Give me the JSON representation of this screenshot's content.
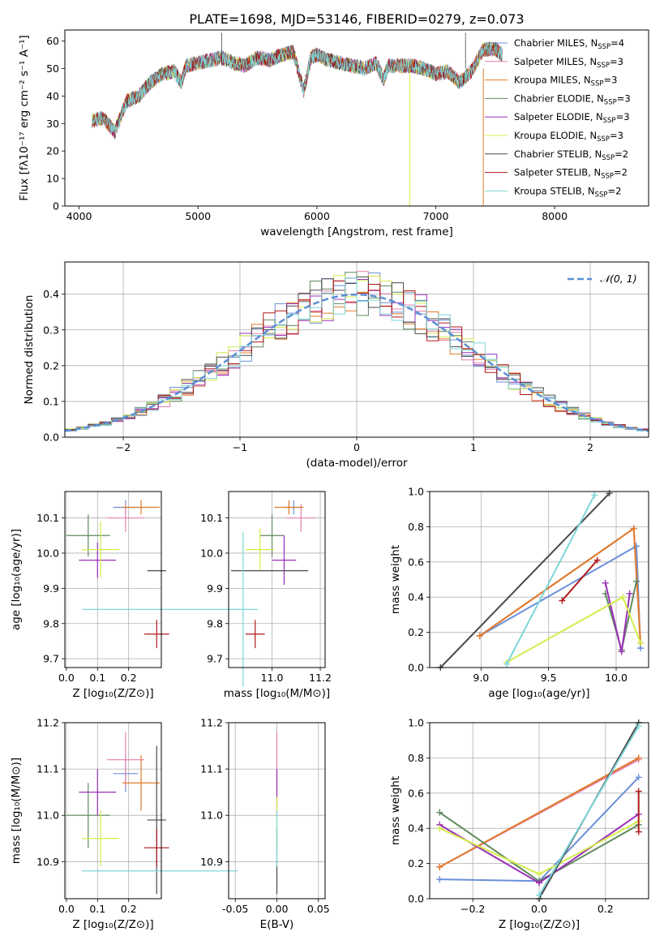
{
  "title": "PLATE=1698, MJD=53146, FIBERID=0279, z=0.073",
  "colors": {
    "chabrier_miles": "#6a8fd8",
    "salpeter_miles": "#e57fae",
    "kroupa_miles": "#e07b2a",
    "chabrier_elodie": "#5f8a5f",
    "salpeter_elodie": "#9b30b8",
    "kroupa_elodie": "#d4ec4a",
    "chabrier_stelib": "#4a4a4a",
    "salpeter_stelib": "#b01818",
    "kroupa_stelib": "#7fd6d8",
    "gaussian": "#5b8fd6"
  },
  "legend_spectrum": [
    {
      "key": "chabrier_miles",
      "label": "Chabrier MILES, N",
      "sub": "SSP",
      "eq": "=4"
    },
    {
      "key": "salpeter_miles",
      "label": "Salpeter MILES, N",
      "sub": "SSP",
      "eq": "=3"
    },
    {
      "key": "kroupa_miles",
      "label": "Kroupa MILES, N",
      "sub": "SSP",
      "eq": "=3"
    },
    {
      "key": "chabrier_elodie",
      "label": "Chabrier ELODIE, N",
      "sub": "SSP",
      "eq": "=3"
    },
    {
      "key": "salpeter_elodie",
      "label": "Salpeter ELODIE, N",
      "sub": "SSP",
      "eq": "=3"
    },
    {
      "key": "kroupa_elodie",
      "label": "Kroupa ELODIE, N",
      "sub": "SSP",
      "eq": "=3"
    },
    {
      "key": "chabrier_stelib",
      "label": "Chabrier STELIB, N",
      "sub": "SSP",
      "eq": "=2"
    },
    {
      "key": "salpeter_stelib",
      "label": "Salpeter STELIB, N",
      "sub": "SSP",
      "eq": "=2"
    },
    {
      "key": "kroupa_stelib",
      "label": "Kroupa STELIB, N",
      "sub": "SSP",
      "eq": "=2"
    }
  ],
  "chart_data": [
    {
      "id": "spectrum",
      "type": "line",
      "xlabel": "wavelength [Angstrom, rest frame]",
      "ylabel": "Flux [fλ10⁻¹⁷ erg cm⁻² s⁻¹ A⁻¹]",
      "xlim": [
        3880,
        8790
      ],
      "ylim": [
        0,
        64
      ],
      "xticks": [
        4000,
        5000,
        6000,
        7000,
        8000
      ],
      "yticks": [
        0,
        10,
        20,
        30,
        40,
        50,
        60
      ],
      "x": [
        4110,
        4200,
        4300,
        4400,
        4500,
        4600,
        4700,
        4800,
        4860,
        4900,
        5000,
        5100,
        5200,
        5300,
        5400,
        5500,
        5600,
        5700,
        5800,
        5890,
        5950,
        6000,
        6100,
        6200,
        6300,
        6400,
        6500,
        6560,
        6600,
        6700,
        6800,
        6900,
        7000,
        7100,
        7200,
        7300,
        7400,
        7500,
        7560
      ],
      "y": [
        31,
        32,
        27,
        38,
        40,
        45,
        48,
        49,
        45,
        51,
        52,
        53,
        54,
        52,
        51,
        54,
        53,
        55,
        56,
        42,
        54,
        55,
        53,
        52,
        51,
        50,
        52,
        46,
        51,
        51,
        51,
        50,
        48,
        49,
        45,
        49,
        57,
        57,
        55
      ]
    },
    {
      "id": "residuals",
      "type": "histogram",
      "xlabel": "(data-model)/error",
      "ylabel": "Normed distribution",
      "xlim": [
        -2.5,
        2.5
      ],
      "ylim": [
        0,
        0.49
      ],
      "xticks": [
        -2,
        -1,
        0,
        1,
        2
      ],
      "yticks": [
        0.0,
        0.1,
        0.2,
        0.3,
        0.4
      ],
      "legend": "𝒩(0, 1)",
      "bin_width": 0.1
    },
    {
      "id": "age_vs_Z",
      "type": "scatter",
      "xlabel": "Z [log₁₀(Z/Z⊙)]",
      "ylabel": "age [log₁₀(age/yr)]",
      "xlim": [
        -0.005,
        0.305
      ],
      "ylim": [
        9.675,
        10.175
      ],
      "xticks": [
        0.0,
        0.1,
        0.2
      ],
      "yticks": [
        9.7,
        9.8,
        9.9,
        10.0,
        10.1
      ],
      "points": [
        {
          "key": "chabrier_miles",
          "x": 0.19,
          "y": 10.13,
          "xerr": 0.04,
          "yerr": 0.02
        },
        {
          "key": "salpeter_miles",
          "x": 0.19,
          "y": 10.1,
          "xerr": 0.06,
          "yerr": 0.04
        },
        {
          "key": "kroupa_miles",
          "x": 0.24,
          "y": 10.13,
          "xerr": 0.06,
          "yerr": 0.02
        },
        {
          "key": "chabrier_elodie",
          "x": 0.07,
          "y": 10.05,
          "xerr": 0.07,
          "yerr": 0.06
        },
        {
          "key": "salpeter_elodie",
          "x": 0.1,
          "y": 9.98,
          "xerr": 0.06,
          "yerr": 0.05
        },
        {
          "key": "kroupa_elodie",
          "x": 0.11,
          "y": 10.01,
          "xerr": 0.06,
          "yerr": 0.08
        },
        {
          "key": "chabrier_stelib",
          "x": 0.29,
          "y": 9.95,
          "xerr": 0.03,
          "yerr": 0.0
        },
        {
          "key": "salpeter_stelib",
          "x": 0.29,
          "y": 9.77,
          "xerr": 0.04,
          "yerr": 0.04
        },
        {
          "key": "kroupa_stelib",
          "x": 0.3,
          "y": 9.84,
          "xerr": 0.25,
          "yerr": 0.0
        }
      ]
    },
    {
      "id": "age_vs_mass",
      "type": "scatter",
      "xlabel": "mass [log₁₀(M/M⊙)]",
      "ylabel": "",
      "xlim": [
        10.82,
        11.22
      ],
      "ylim": [
        9.675,
        10.175
      ],
      "xticks": [
        11.0,
        11.2
      ],
      "yticks": [
        9.7,
        9.8,
        9.9,
        10.0,
        10.1
      ],
      "points": [
        {
          "key": "chabrier_miles",
          "x": 11.09,
          "y": 10.13,
          "xerr": 0.04,
          "yerr": 0.02
        },
        {
          "key": "salpeter_miles",
          "x": 11.12,
          "y": 10.1,
          "xerr": 0.06,
          "yerr": 0.04
        },
        {
          "key": "kroupa_miles",
          "x": 11.07,
          "y": 10.13,
          "xerr": 0.06,
          "yerr": 0.02
        },
        {
          "key": "chabrier_elodie",
          "x": 11.0,
          "y": 10.05,
          "xerr": 0.05,
          "yerr": 0.06
        },
        {
          "key": "salpeter_elodie",
          "x": 11.05,
          "y": 9.98,
          "xerr": 0.05,
          "yerr": 0.07
        },
        {
          "key": "kroupa_elodie",
          "x": 10.95,
          "y": 10.01,
          "xerr": 0.06,
          "yerr": 0.06
        },
        {
          "key": "chabrier_stelib",
          "x": 10.99,
          "y": 9.95,
          "xerr": 0.16,
          "yerr": 0.0
        },
        {
          "key": "salpeter_stelib",
          "x": 10.93,
          "y": 9.77,
          "xerr": 0.04,
          "yerr": 0.04
        },
        {
          "key": "kroupa_stelib",
          "x": 10.88,
          "y": 9.84,
          "xerr": 0.06,
          "yerr": 0.22
        }
      ]
    },
    {
      "id": "weight_vs_age",
      "type": "line",
      "xlabel": "age [log₁₀(age/yr)]",
      "ylabel": "mass weight",
      "xlim": [
        8.62,
        10.24
      ],
      "ylim": [
        0.0,
        1.0
      ],
      "xticks": [
        9.0,
        9.5,
        10.0
      ],
      "yticks": [
        0.0,
        0.2,
        0.4,
        0.6,
        0.8,
        1.0
      ],
      "series": [
        {
          "key": "chabrier_miles",
          "x": [
            8.99,
            10.15,
            10.18
          ],
          "y": [
            0.18,
            0.69,
            0.11
          ]
        },
        {
          "key": "salpeter_miles",
          "x": [
            8.99,
            10.13,
            10.18
          ],
          "y": [
            0.18,
            0.79,
            0.14
          ]
        },
        {
          "key": "kroupa_miles",
          "x": [
            8.99,
            10.13,
            10.18
          ],
          "y": [
            0.18,
            0.79,
            0.14
          ]
        },
        {
          "key": "chabrier_elodie",
          "x": [
            9.92,
            10.04,
            10.15
          ],
          "y": [
            0.42,
            0.1,
            0.49
          ]
        },
        {
          "key": "salpeter_elodie",
          "x": [
            9.92,
            10.04,
            10.1
          ],
          "y": [
            0.48,
            0.09,
            0.42
          ]
        },
        {
          "key": "kroupa_elodie",
          "x": [
            9.19,
            10.05,
            10.18
          ],
          "y": [
            0.03,
            0.4,
            0.14
          ]
        },
        {
          "key": "chabrier_stelib",
          "x": [
            8.7,
            9.95
          ],
          "y": [
            0.0,
            0.99
          ]
        },
        {
          "key": "salpeter_stelib",
          "x": [
            9.6,
            9.86
          ],
          "y": [
            0.38,
            0.61
          ]
        },
        {
          "key": "kroupa_stelib",
          "x": [
            9.19,
            9.84
          ],
          "y": [
            0.02,
            0.98
          ]
        }
      ]
    },
    {
      "id": "mass_vs_Z",
      "type": "scatter",
      "xlabel": "Z [log₁₀(Z/Z⊙)]",
      "ylabel": "mass [log₁₀(M/M⊙)]",
      "xlim": [
        -0.005,
        0.305
      ],
      "ylim": [
        10.82,
        11.2
      ],
      "xticks": [
        0.0,
        0.1,
        0.2
      ],
      "yticks": [
        10.9,
        11.0,
        11.1,
        11.2
      ],
      "points": [
        {
          "key": "chabrier_miles",
          "x": 0.19,
          "y": 11.09,
          "xerr": 0.04,
          "yerr": 0.04
        },
        {
          "key": "salpeter_miles",
          "x": 0.19,
          "y": 11.12,
          "xerr": 0.06,
          "yerr": 0.06
        },
        {
          "key": "kroupa_miles",
          "x": 0.24,
          "y": 11.07,
          "xerr": 0.06,
          "yerr": 0.06
        },
        {
          "key": "chabrier_elodie",
          "x": 0.07,
          "y": 11.0,
          "xerr": 0.07,
          "yerr": 0.07
        },
        {
          "key": "salpeter_elodie",
          "x": 0.1,
          "y": 11.05,
          "xerr": 0.06,
          "yerr": 0.05
        },
        {
          "key": "kroupa_elodie",
          "x": 0.11,
          "y": 10.95,
          "xerr": 0.06,
          "yerr": 0.06
        },
        {
          "key": "chabrier_stelib",
          "x": 0.29,
          "y": 10.99,
          "xerr": 0.03,
          "yerr": 0.16
        },
        {
          "key": "salpeter_stelib",
          "x": 0.29,
          "y": 10.93,
          "xerr": 0.04,
          "yerr": 0.04
        },
        {
          "key": "kroupa_stelib",
          "x": 0.3,
          "y": 10.88,
          "xerr": 0.25,
          "yerr": 0.0
        }
      ]
    },
    {
      "id": "mass_vs_ebv",
      "type": "scatter",
      "xlabel": "E(B-V)",
      "ylabel": "",
      "xlim": [
        -0.058,
        0.058
      ],
      "ylim": [
        10.82,
        11.2
      ],
      "xticks": [
        -0.05,
        0.0,
        0.05
      ],
      "yticks": [
        10.9,
        11.0,
        11.1,
        11.2
      ],
      "points": [
        {
          "key": "salpeter_miles",
          "x": 0.0,
          "y": 11.1,
          "xerr": 0.0,
          "yerr": 0.08
        },
        {
          "key": "salpeter_elodie",
          "x": 0.0,
          "y": 11.05,
          "xerr": 0.0,
          "yerr": 0.05
        },
        {
          "key": "kroupa_elodie",
          "x": 0.0,
          "y": 10.98,
          "xerr": 0.0,
          "yerr": 0.06
        },
        {
          "key": "chabrier_stelib",
          "x": 0.0,
          "y": 10.9,
          "xerr": 0.0,
          "yerr": 0.07
        },
        {
          "key": "kroupa_stelib",
          "x": 0.0,
          "y": 10.95,
          "xerr": 0.0,
          "yerr": 0.06
        }
      ]
    },
    {
      "id": "weight_vs_Z",
      "type": "line",
      "xlabel": "Z [log₁₀(Z/Z⊙)]",
      "ylabel": "mass weight",
      "xlim": [
        -0.33,
        0.33
      ],
      "ylim": [
        0.0,
        1.0
      ],
      "xticks": [
        -0.2,
        0.0,
        0.2
      ],
      "yticks": [
        0.0,
        0.2,
        0.4,
        0.6,
        0.8,
        1.0
      ],
      "series": [
        {
          "key": "chabrier_miles",
          "x": [
            -0.3,
            0.0,
            0.3
          ],
          "y": [
            0.11,
            0.1,
            0.69
          ]
        },
        {
          "key": "salpeter_miles",
          "x": [
            -0.3,
            0.3
          ],
          "y": [
            0.18,
            0.79
          ]
        },
        {
          "key": "kroupa_miles",
          "x": [
            -0.3,
            0.3
          ],
          "y": [
            0.18,
            0.8
          ]
        },
        {
          "key": "chabrier_elodie",
          "x": [
            -0.3,
            0.0,
            0.3
          ],
          "y": [
            0.49,
            0.1,
            0.42
          ]
        },
        {
          "key": "salpeter_elodie",
          "x": [
            -0.3,
            0.0,
            0.3
          ],
          "y": [
            0.42,
            0.09,
            0.48
          ]
        },
        {
          "key": "kroupa_elodie",
          "x": [
            -0.3,
            0.0,
            0.3
          ],
          "y": [
            0.4,
            0.14,
            0.44
          ]
        },
        {
          "key": "chabrier_stelib",
          "x": [
            0.0,
            0.3
          ],
          "y": [
            0.0,
            1.0
          ]
        },
        {
          "key": "salpeter_stelib",
          "x": [
            0.3,
            0.3
          ],
          "y": [
            0.38,
            0.61
          ]
        },
        {
          "key": "kroupa_stelib",
          "x": [
            0.0,
            0.3
          ],
          "y": [
            0.02,
            0.98
          ]
        }
      ]
    }
  ]
}
